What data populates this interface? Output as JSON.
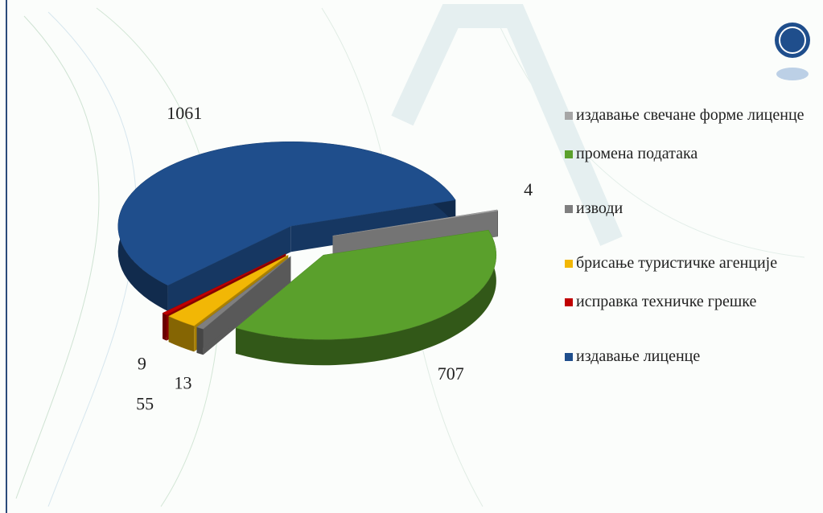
{
  "chart_data": {
    "type": "pie",
    "categories": [
      "издавање свечане форме лиценце",
      "промена података",
      "изводи",
      "брисање туристичке агенције",
      "исправка техничке грешке",
      "издавање лиценце"
    ],
    "values": [
      4,
      707,
      13,
      55,
      9,
      1061
    ],
    "colors": [
      "#a6a6a6",
      "#5aa02c",
      "#7f7f7f",
      "#f2b705",
      "#c00000",
      "#1f4e8c"
    ],
    "legend": "right"
  }
}
